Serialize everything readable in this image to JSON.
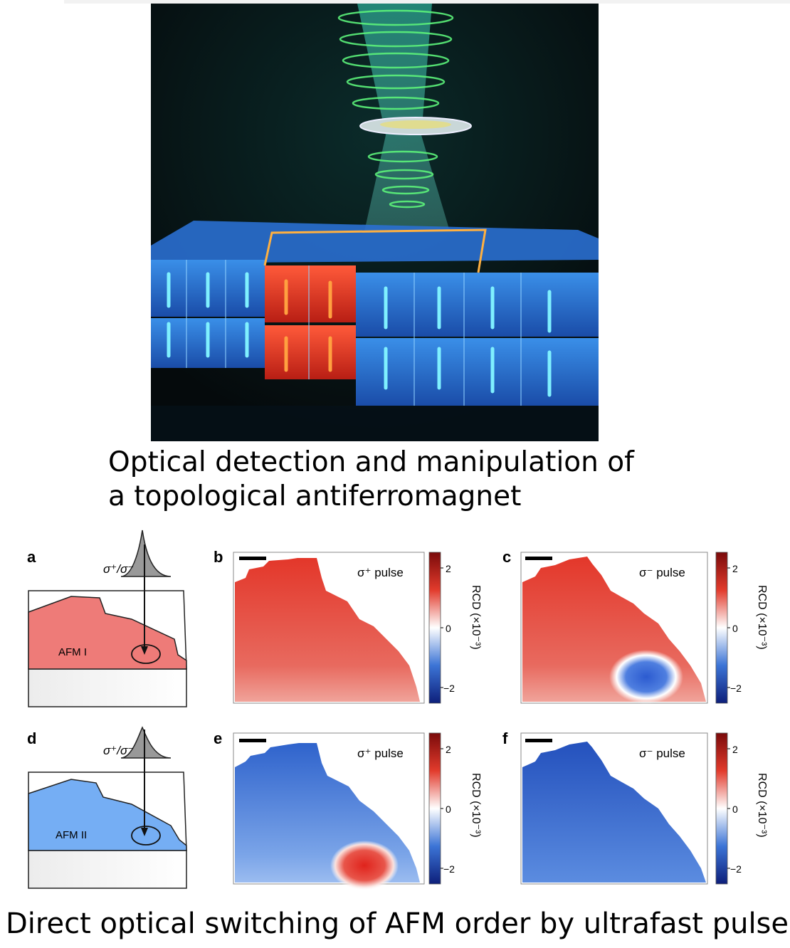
{
  "header": {
    "title_line1": "Optical detection and manipulation of",
    "title_line2": "a topological antiferromagnet"
  },
  "footer": {
    "caption": "Direct optical switching of AFM order by ultrafast pulse"
  },
  "colors": {
    "afm1": "#ee7b78",
    "afm2": "#75aef4",
    "map_red": "#e23b2c",
    "map_blue": "#3c74d6"
  },
  "panels": {
    "a": {
      "letter": "a",
      "label": "AFM I",
      "pulse": "σ⁺/σ⁻"
    },
    "b": {
      "letter": "b",
      "title": "σ⁺ pulse"
    },
    "c": {
      "letter": "c",
      "title": "σ⁻ pulse"
    },
    "d": {
      "letter": "d",
      "label": "AFM II",
      "pulse": "σ⁺/σ⁻"
    },
    "e": {
      "letter": "e",
      "title": "σ⁺ pulse"
    },
    "f": {
      "letter": "f",
      "title": "σ⁻ pulse"
    }
  },
  "colorbar": {
    "label": "RCD (×10⁻³)",
    "ticks": [
      "2",
      "0",
      "−2"
    ]
  }
}
